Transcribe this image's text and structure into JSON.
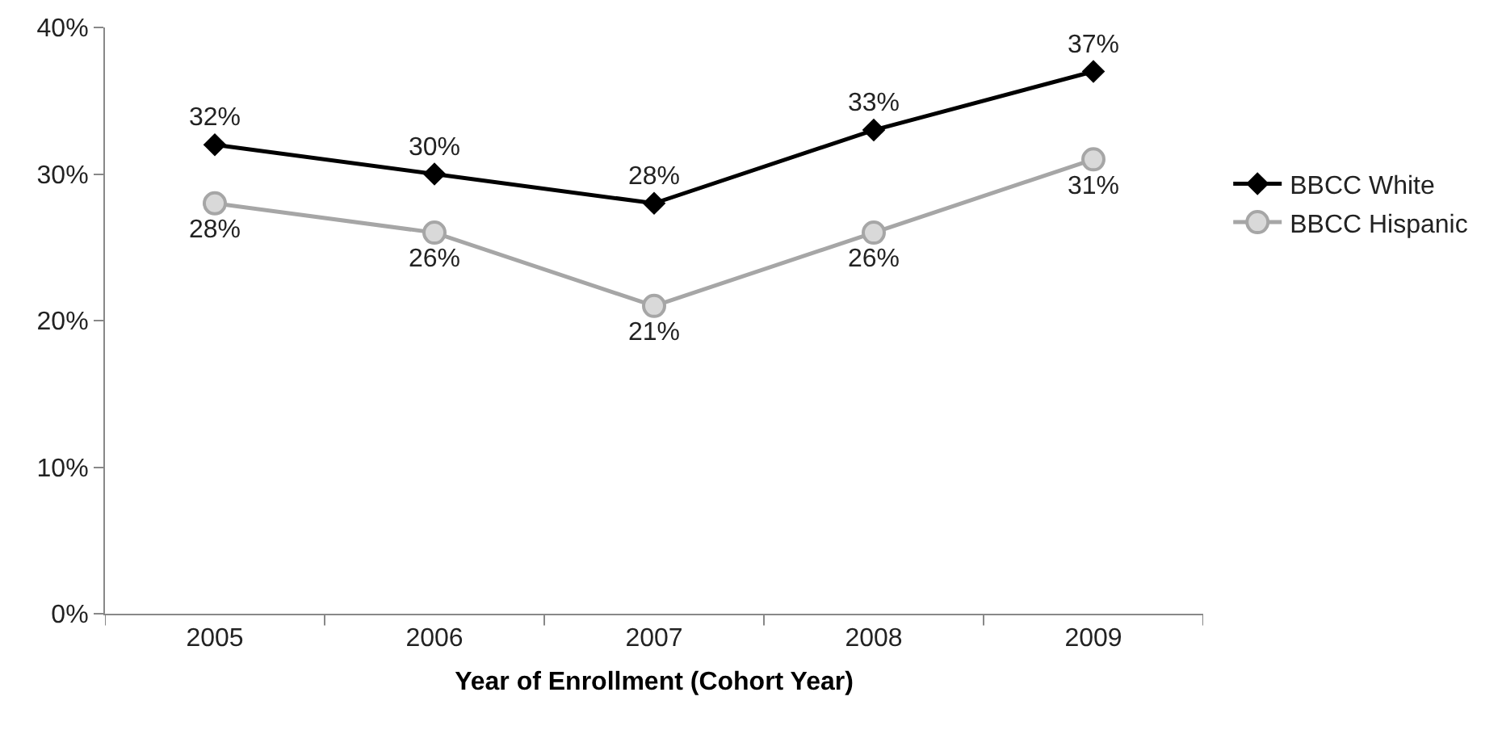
{
  "chart_data": {
    "type": "line",
    "xlabel": "Year of Enrollment (Cohort Year)",
    "categories": [
      "2005",
      "2006",
      "2007",
      "2008",
      "2009"
    ],
    "series": [
      {
        "name": "BBCC White",
        "color": "#000000",
        "marker": "diamond",
        "values": [
          32,
          30,
          28,
          33,
          37
        ],
        "value_labels": [
          "32%",
          "30%",
          "28%",
          "33%",
          "37%"
        ]
      },
      {
        "name": "BBCC Hispanic",
        "color": "#a6a6a6",
        "marker": "circle",
        "values": [
          28,
          26,
          21,
          26,
          31
        ],
        "value_labels": [
          "28%",
          "26%",
          "21%",
          "26%",
          "31%"
        ]
      }
    ],
    "ylim": [
      0,
      40
    ],
    "yticks": [
      {
        "value": 0,
        "label": "0%"
      },
      {
        "value": 10,
        "label": "10%"
      },
      {
        "value": 20,
        "label": "20%"
      },
      {
        "value": 30,
        "label": "30%"
      },
      {
        "value": 40,
        "label": "40%"
      }
    ],
    "grid": false,
    "legend": "right",
    "line_style": "solid"
  }
}
